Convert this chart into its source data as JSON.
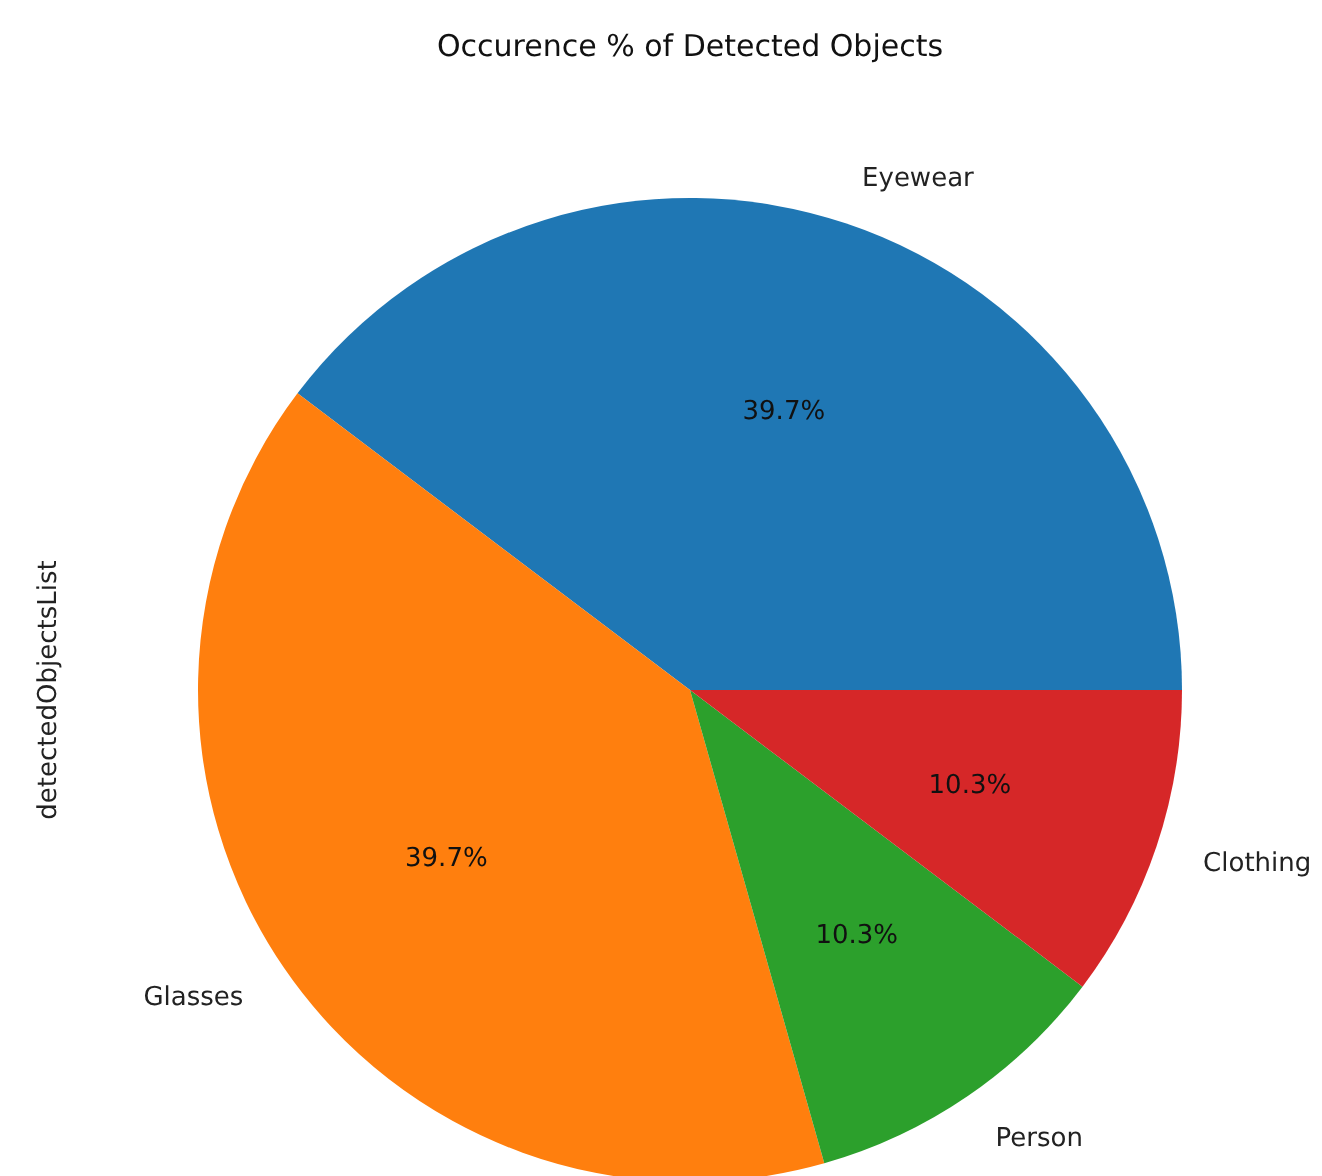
{
  "chart_data": {
    "type": "pie",
    "title": "Occurence % of Detected Objects",
    "ylabel": "detectedObjectsList",
    "categories": [
      "Eyewear",
      "Glasses",
      "Person",
      "Clothing"
    ],
    "values": [
      39.7,
      39.7,
      10.3,
      10.3
    ],
    "colors": [
      "#1f77b4",
      "#ff7f0e",
      "#2ca02c",
      "#d62728"
    ],
    "value_labels": [
      "39.7%",
      "39.7%",
      "10.3%",
      "10.3%"
    ]
  }
}
